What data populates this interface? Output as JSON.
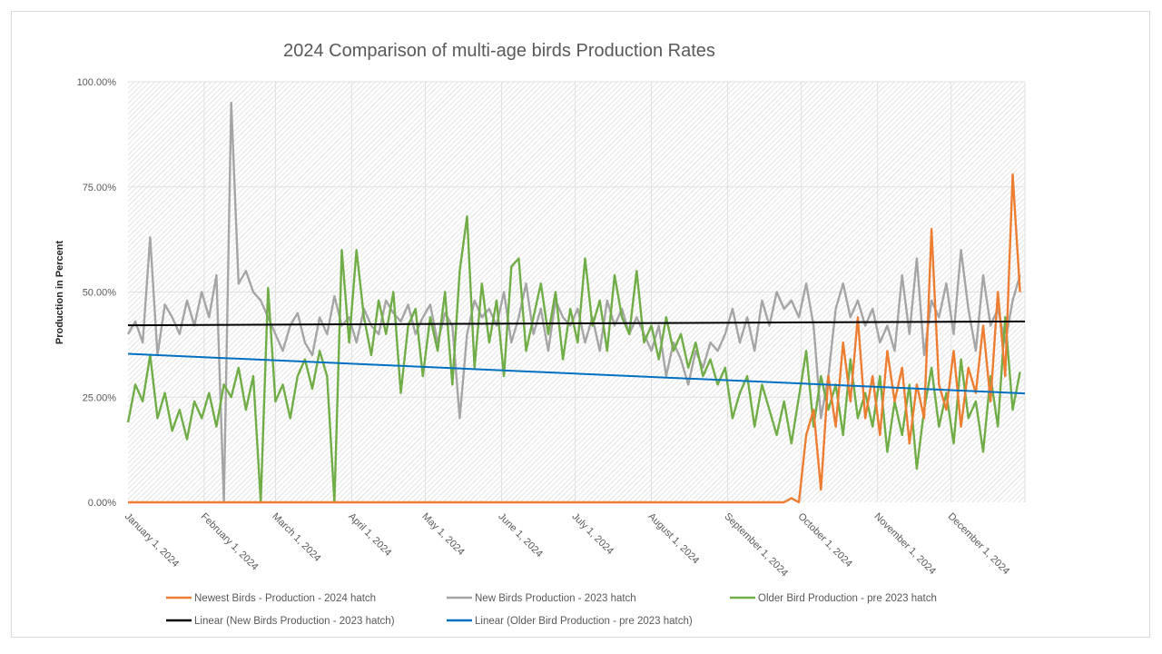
{
  "chart_data": {
    "type": "line",
    "title": "2024 Comparison of multi-age birds Production Rates",
    "xlabel": "",
    "ylabel": "Production in Percent",
    "ylim": [
      0,
      100
    ],
    "yticks": [
      "0.00%",
      "25.00%",
      "50.00%",
      "75.00%",
      "100.00%"
    ],
    "ytick_values": [
      0,
      25,
      50,
      75,
      100
    ],
    "xlim": [
      "2024-01-01",
      "2024-12-31"
    ],
    "xticks": [
      "January 1, 2024",
      "February 1, 2024",
      "March 1, 2024",
      "April 1, 2024",
      "May 1, 2024",
      "June 1, 2024",
      "July 1, 2024",
      "August 1, 2024",
      "September 1, 2024",
      "October 1, 2024",
      "November 1, 2024",
      "December 1, 2024"
    ],
    "xtick_dates": [
      "2024-01-01",
      "2024-02-01",
      "2024-03-01",
      "2024-04-01",
      "2024-05-01",
      "2024-06-01",
      "2024-07-01",
      "2024-08-01",
      "2024-09-01",
      "2024-10-01",
      "2024-11-01",
      "2024-12-01"
    ],
    "grid": true,
    "legend_position": "bottom",
    "x": [
      "2024-01-01",
      "2024-01-04",
      "2024-01-07",
      "2024-01-10",
      "2024-01-13",
      "2024-01-16",
      "2024-01-19",
      "2024-01-22",
      "2024-01-25",
      "2024-01-28",
      "2024-01-31",
      "2024-02-03",
      "2024-02-06",
      "2024-02-09",
      "2024-02-12",
      "2024-02-15",
      "2024-02-18",
      "2024-02-21",
      "2024-02-24",
      "2024-02-27",
      "2024-03-01",
      "2024-03-04",
      "2024-03-07",
      "2024-03-10",
      "2024-03-13",
      "2024-03-16",
      "2024-03-19",
      "2024-03-22",
      "2024-03-25",
      "2024-03-28",
      "2024-03-31",
      "2024-04-03",
      "2024-04-06",
      "2024-04-09",
      "2024-04-12",
      "2024-04-15",
      "2024-04-18",
      "2024-04-21",
      "2024-04-24",
      "2024-04-27",
      "2024-04-30",
      "2024-05-03",
      "2024-05-06",
      "2024-05-09",
      "2024-05-12",
      "2024-05-15",
      "2024-05-18",
      "2024-05-21",
      "2024-05-24",
      "2024-05-27",
      "2024-05-30",
      "2024-06-02",
      "2024-06-05",
      "2024-06-08",
      "2024-06-11",
      "2024-06-14",
      "2024-06-17",
      "2024-06-20",
      "2024-06-23",
      "2024-06-26",
      "2024-06-29",
      "2024-07-02",
      "2024-07-05",
      "2024-07-08",
      "2024-07-11",
      "2024-07-14",
      "2024-07-17",
      "2024-07-20",
      "2024-07-23",
      "2024-07-26",
      "2024-07-29",
      "2024-08-01",
      "2024-08-04",
      "2024-08-07",
      "2024-08-10",
      "2024-08-13",
      "2024-08-16",
      "2024-08-19",
      "2024-08-22",
      "2024-08-25",
      "2024-08-28",
      "2024-08-31",
      "2024-09-03",
      "2024-09-06",
      "2024-09-09",
      "2024-09-12",
      "2024-09-15",
      "2024-09-18",
      "2024-09-21",
      "2024-09-24",
      "2024-09-27",
      "2024-09-30",
      "2024-10-03",
      "2024-10-06",
      "2024-10-09",
      "2024-10-12",
      "2024-10-15",
      "2024-10-18",
      "2024-10-21",
      "2024-10-24",
      "2024-10-27",
      "2024-10-30",
      "2024-11-02",
      "2024-11-05",
      "2024-11-08",
      "2024-11-11",
      "2024-11-14",
      "2024-11-17",
      "2024-11-20",
      "2024-11-23",
      "2024-11-26",
      "2024-11-29",
      "2024-12-02",
      "2024-12-05",
      "2024-12-08",
      "2024-12-11",
      "2024-12-14",
      "2024-12-17",
      "2024-12-20",
      "2024-12-23",
      "2024-12-26",
      "2024-12-29"
    ],
    "series": [
      {
        "name": "Newest Birds - Production - 2024 hatch",
        "color": "#ED7D31",
        "values": [
          0,
          0,
          0,
          0,
          0,
          0,
          0,
          0,
          0,
          0,
          0,
          0,
          0,
          0,
          0,
          0,
          0,
          0,
          0,
          0,
          0,
          0,
          0,
          0,
          0,
          0,
          0,
          0,
          0,
          0,
          0,
          0,
          0,
          0,
          0,
          0,
          0,
          0,
          0,
          0,
          0,
          0,
          0,
          0,
          0,
          0,
          0,
          0,
          0,
          0,
          0,
          0,
          0,
          0,
          0,
          0,
          0,
          0,
          0,
          0,
          0,
          0,
          0,
          0,
          0,
          0,
          0,
          0,
          0,
          0,
          0,
          0,
          0,
          0,
          0,
          0,
          0,
          0,
          0,
          0,
          0,
          0,
          0,
          0,
          0,
          0,
          0,
          0,
          0,
          0,
          1,
          0,
          16,
          22,
          3,
          30,
          18,
          38,
          24,
          44,
          20,
          30,
          16,
          36,
          24,
          32,
          14,
          28,
          20,
          65,
          28,
          22,
          36,
          18,
          32,
          26,
          42,
          24,
          50,
          30,
          78,
          50
        ]
      },
      {
        "name": "New Birds Production - 2023 hatch",
        "color": "#A5A5A5",
        "values": [
          40,
          43,
          38,
          63,
          35,
          47,
          44,
          40,
          48,
          42,
          50,
          44,
          54,
          0,
          95,
          52,
          55,
          50,
          48,
          44,
          40,
          36,
          42,
          45,
          38,
          35,
          44,
          40,
          49,
          42,
          44,
          38,
          46,
          42,
          40,
          48,
          45,
          43,
          47,
          40,
          44,
          47,
          38,
          45,
          42,
          20,
          40,
          48,
          44,
          46,
          42,
          50,
          38,
          44,
          52,
          40,
          46,
          36,
          48,
          44,
          42,
          46,
          38,
          44,
          36,
          48,
          42,
          46,
          40,
          44,
          40,
          36,
          42,
          30,
          38,
          34,
          28,
          36,
          32,
          38,
          36,
          40,
          46,
          38,
          44,
          36,
          48,
          42,
          50,
          46,
          48,
          44,
          52,
          42,
          20,
          30,
          46,
          52,
          44,
          48,
          42,
          46,
          38,
          42,
          36,
          54,
          40,
          58,
          35,
          48,
          44,
          52,
          40,
          60,
          46,
          36,
          54,
          42,
          46,
          38,
          48,
          54
        ]
      },
      {
        "name": "Older Bird Production - pre 2023 hatch",
        "color": "#70AD47",
        "values": [
          19,
          28,
          24,
          35,
          20,
          26,
          17,
          22,
          15,
          24,
          20,
          26,
          18,
          28,
          25,
          32,
          22,
          30,
          0,
          51,
          24,
          28,
          20,
          30,
          34,
          27,
          36,
          30,
          0,
          60,
          38,
          60,
          44,
          35,
          48,
          40,
          50,
          26,
          42,
          46,
          30,
          44,
          36,
          50,
          28,
          55,
          68,
          32,
          52,
          38,
          48,
          30,
          56,
          58,
          36,
          44,
          52,
          40,
          50,
          34,
          46,
          38,
          58,
          42,
          48,
          36,
          54,
          44,
          40,
          55,
          38,
          42,
          34,
          44,
          36,
          40,
          32,
          38,
          30,
          34,
          28,
          32,
          20,
          26,
          30,
          18,
          28,
          22,
          16,
          24,
          14,
          25,
          36,
          18,
          30,
          22,
          28,
          16,
          34,
          20,
          26,
          18,
          30,
          12,
          24,
          16,
          28,
          8,
          22,
          32,
          18,
          26,
          14,
          34,
          20,
          24,
          12,
          30,
          18,
          44,
          22,
          31
        ]
      }
    ],
    "trendlines": [
      {
        "name": "Linear (New Birds Production - 2023 hatch)",
        "color": "#000000",
        "start_value": 42.1,
        "end_value": 43.0
      },
      {
        "name": "Linear (Older Bird Production - pre 2023 hatch)",
        "color": "#0070C0",
        "start_value": 35.3,
        "end_value": 25.9
      }
    ]
  }
}
